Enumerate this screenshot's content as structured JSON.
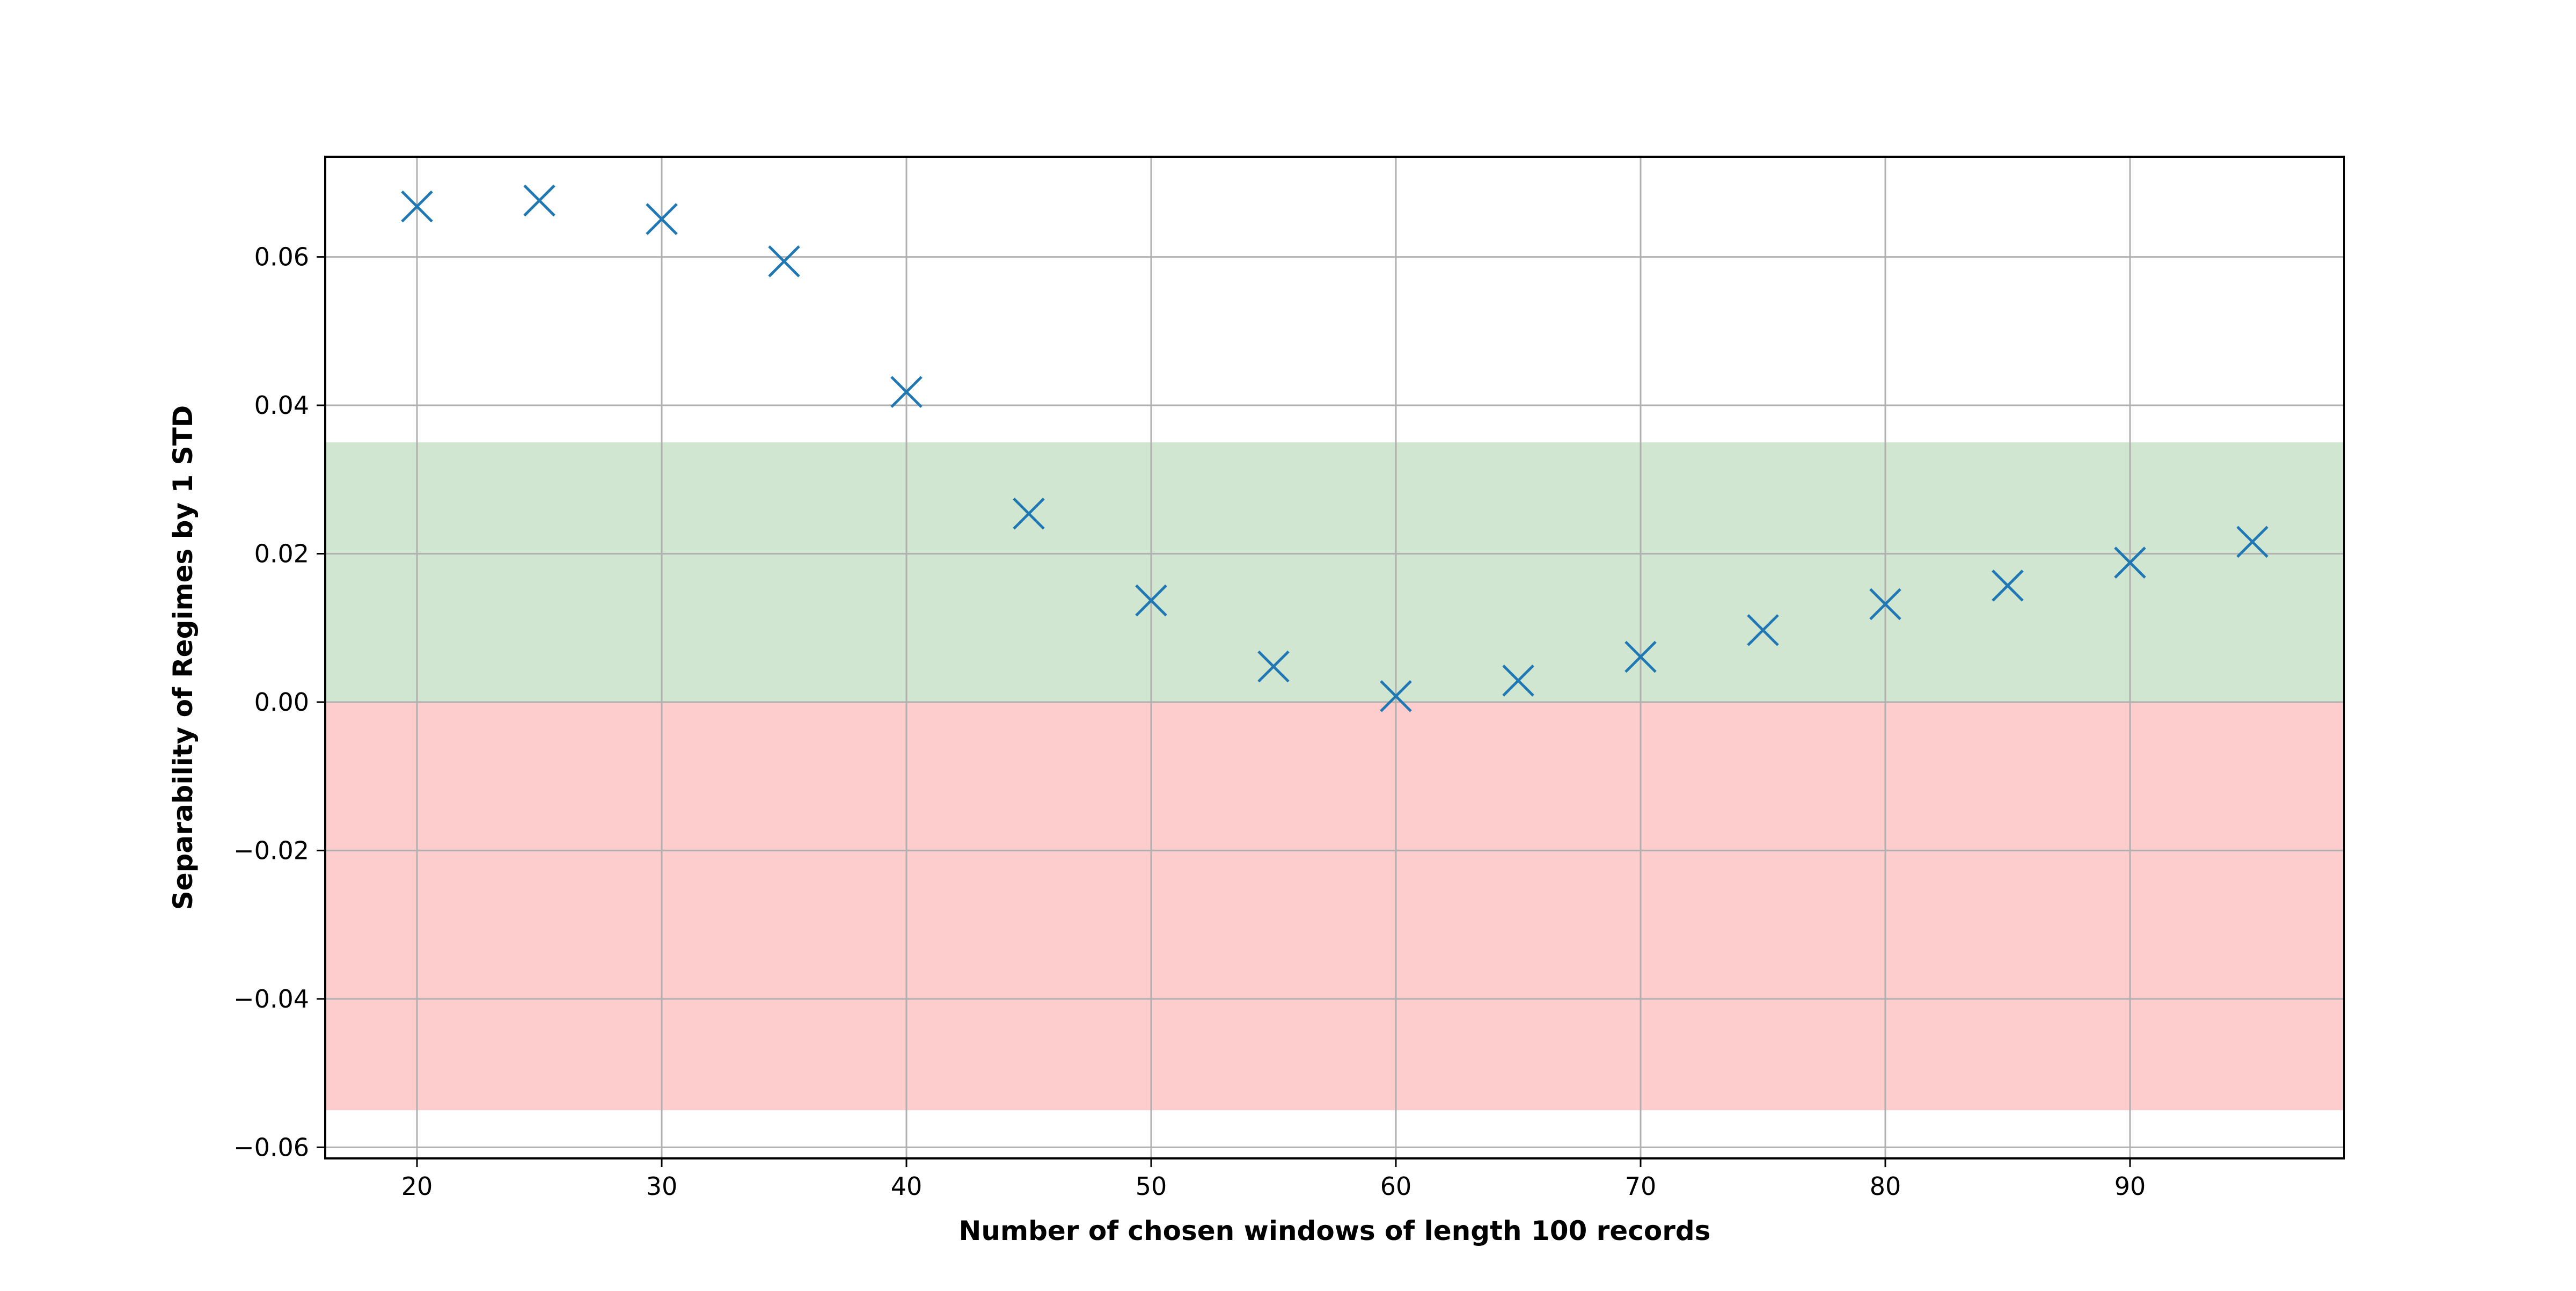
{
  "chart_data": {
    "type": "scatter",
    "title": "",
    "xlabel": "Number of chosen windows of length 100 records",
    "ylabel": "Separability of Regimes by 1 STD",
    "xlim": [
      16.25,
      98.75
    ],
    "ylim": [
      -0.0615,
      0.0735
    ],
    "xticks": [
      20,
      30,
      40,
      50,
      60,
      70,
      80,
      90
    ],
    "xtick_labels": [
      "20",
      "30",
      "40",
      "50",
      "60",
      "70",
      "80",
      "90"
    ],
    "yticks": [
      -0.06,
      -0.04,
      -0.02,
      0.0,
      0.02,
      0.04,
      0.06
    ],
    "ytick_labels": [
      "−0.06",
      "−0.04",
      "−0.02",
      "0.00",
      "0.02",
      "0.04",
      "0.06"
    ],
    "grid": true,
    "marker": "x",
    "marker_color": "#1f77b4",
    "bands": [
      {
        "y0": 0.0,
        "y1": 0.035,
        "color": "#d0e6d0",
        "meaning": "positive separability"
      },
      {
        "y0": -0.055,
        "y1": 0.0,
        "color": "#fdcccc",
        "meaning": "negative separability"
      }
    ],
    "series": [
      {
        "x": [
          20,
          25,
          30,
          35,
          40,
          45,
          50,
          55,
          60,
          65,
          70,
          75,
          80,
          85,
          90,
          95
        ],
        "y": [
          0.0668,
          0.0676,
          0.0651,
          0.0594,
          0.0418,
          0.0254,
          0.0137,
          0.0048,
          0.0008,
          0.0029,
          0.0061,
          0.0097,
          0.0132,
          0.0157,
          0.0188,
          0.0216
        ]
      }
    ]
  }
}
